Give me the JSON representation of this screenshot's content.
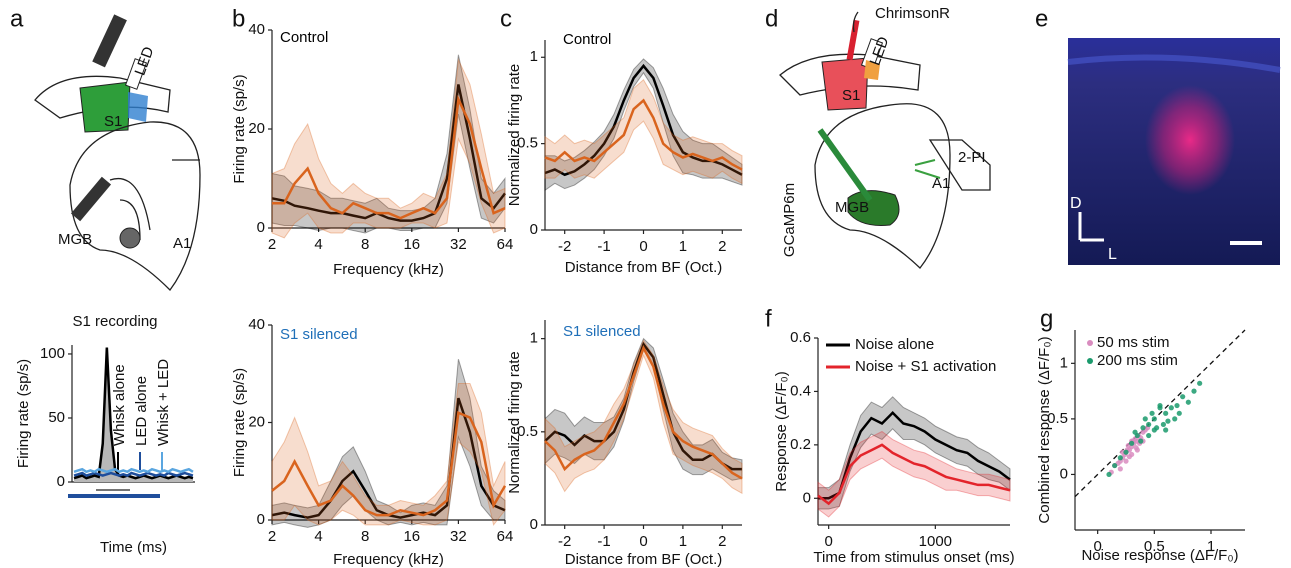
{
  "panel_labels": [
    "a",
    "b",
    "c",
    "d",
    "e",
    "f",
    "g"
  ],
  "diagrams": {
    "a": {
      "led": "LED",
      "s1": "S1",
      "a1": "A1",
      "mgb": "MGB"
    },
    "d": {
      "opsin": "ChrimsonR",
      "led": "LED",
      "s1": "S1",
      "imaging": "2-PI",
      "indicator": "GCaMP6m",
      "mgb": "MGB",
      "a1": "A1"
    },
    "e": {
      "dorsal": "D",
      "lateral": "L"
    }
  },
  "chart_data": [
    {
      "type": "line",
      "title": "S1 recording",
      "y_label": "Firing rate (sp/s)",
      "x_label": "Time (ms)",
      "ylim": [
        0,
        107
      ],
      "yticks": [
        0,
        50,
        100
      ],
      "series": [
        {
          "name": "Whisk alone",
          "color": "#000000",
          "area_color": "#b8b8b8",
          "values": [
            3,
            4,
            5,
            3,
            4,
            5,
            4,
            30,
            105,
            40,
            10,
            5,
            4,
            5,
            4,
            3,
            4,
            5,
            4,
            3,
            4,
            5,
            4,
            3,
            4,
            5,
            4,
            3,
            4,
            3
          ]
        },
        {
          "name": "LED alone",
          "color": "#1f4e9c",
          "values": [
            5,
            6,
            7,
            5,
            6,
            7,
            6,
            5,
            6,
            7,
            6,
            5,
            6,
            5,
            7,
            6,
            5,
            6,
            7,
            6,
            5,
            6,
            5,
            7,
            6,
            5,
            6,
            7,
            6,
            5
          ]
        },
        {
          "name": "Whisk + LED",
          "color": "#5aa6e0",
          "values": [
            8,
            9,
            10,
            8,
            9,
            8,
            10,
            9,
            8,
            9,
            10,
            8,
            9,
            8,
            10,
            9,
            8,
            9,
            8,
            10,
            9,
            8,
            9,
            8,
            10,
            9,
            8,
            9,
            10,
            8
          ]
        }
      ]
    },
    {
      "type": "line",
      "title": "Control",
      "title_color": "#000000",
      "y_label": "Firing rate (sp/s)",
      "x_label": "Frequency (kHz)",
      "xscale": "log",
      "xlim": [
        2,
        64
      ],
      "xticks": [
        2,
        4,
        8,
        16,
        32,
        64
      ],
      "ylim": [
        0,
        40
      ],
      "yticks": [
        0,
        20,
        40
      ],
      "x": [
        2,
        2.4,
        2.8,
        3.4,
        4,
        4.8,
        5.7,
        6.7,
        8,
        9.5,
        11.3,
        13.5,
        16,
        19,
        22.6,
        27,
        32,
        38,
        45,
        54,
        64
      ],
      "series": [
        {
          "color": "#000000",
          "values": [
            6,
            5.5,
            4.5,
            4,
            3.5,
            3,
            3,
            2.5,
            2,
            3,
            2,
            1.5,
            1.5,
            2,
            3,
            10,
            29,
            18,
            6,
            4,
            7
          ],
          "errors": [
            5,
            5,
            4,
            4,
            4,
            3,
            3,
            3,
            3,
            3,
            2,
            2,
            2,
            2,
            3,
            5,
            6,
            6,
            4,
            3,
            3
          ]
        },
        {
          "color": "#d9641e",
          "values": [
            5,
            5,
            9,
            12,
            7,
            4,
            3,
            5,
            4,
            3,
            3,
            2,
            3,
            4,
            3,
            6,
            26,
            21,
            12,
            3,
            4
          ],
          "errors": [
            6,
            7,
            8,
            9,
            7,
            5,
            4,
            4,
            3,
            3,
            3,
            2,
            2,
            3,
            3,
            5,
            8,
            8,
            7,
            4,
            4
          ]
        }
      ]
    },
    {
      "type": "line",
      "title": "S1 silenced",
      "title_color": "#1f6fb8",
      "y_label": "Firing rate (sp/s)",
      "x_label": "Frequency (kHz)",
      "xscale": "log",
      "xlim": [
        2,
        64
      ],
      "xticks": [
        2,
        4,
        8,
        16,
        32,
        64
      ],
      "ylim": [
        0,
        40
      ],
      "yticks": [
        0,
        20,
        40
      ],
      "x": [
        2,
        2.4,
        2.8,
        3.4,
        4,
        4.8,
        5.7,
        6.7,
        8,
        9.5,
        11.3,
        13.5,
        16,
        19,
        22.6,
        27,
        32,
        38,
        45,
        54,
        64
      ],
      "series": [
        {
          "color": "#000000",
          "values": [
            1,
            1.5,
            1,
            0.5,
            1,
            4,
            8,
            10,
            6,
            2,
            1,
            0.5,
            1,
            1.5,
            1,
            3,
            25,
            18,
            7,
            3,
            2
          ],
          "errors": [
            2,
            2,
            2,
            2,
            2,
            4,
            5,
            5,
            4,
            2,
            2,
            1,
            2,
            2,
            2,
            4,
            8,
            7,
            4,
            3,
            2
          ]
        },
        {
          "color": "#d9641e",
          "values": [
            6,
            8,
            12,
            7,
            3,
            4,
            7,
            5,
            2,
            1,
            1,
            2,
            1.5,
            1,
            2,
            4,
            22,
            21,
            16,
            3,
            7
          ],
          "errors": [
            6,
            8,
            9,
            7,
            4,
            4,
            5,
            4,
            3,
            2,
            2,
            2,
            2,
            2,
            3,
            4,
            6,
            7,
            6,
            4,
            5
          ]
        }
      ]
    },
    {
      "type": "line",
      "title": "Control",
      "title_color": "#000000",
      "y_label": "Normalized firing rate",
      "x_label": "Distance from BF (Oct.)",
      "xlim": [
        -2.5,
        2.5
      ],
      "xticks": [
        -2,
        -1,
        0,
        1,
        2
      ],
      "ylim": [
        0,
        1.1
      ],
      "yticks": [
        0,
        0.5,
        1
      ],
      "x": [
        -2.5,
        -2.25,
        -2,
        -1.75,
        -1.5,
        -1.25,
        -1,
        -0.75,
        -0.5,
        -0.25,
        0,
        0.25,
        0.5,
        0.75,
        1,
        1.25,
        1.5,
        1.75,
        2,
        2.25,
        2.5
      ],
      "series": [
        {
          "color": "#000000",
          "values": [
            0.33,
            0.35,
            0.32,
            0.34,
            0.38,
            0.43,
            0.5,
            0.6,
            0.75,
            0.88,
            0.95,
            0.88,
            0.72,
            0.55,
            0.45,
            0.42,
            0.4,
            0.4,
            0.38,
            0.35,
            0.32
          ],
          "errors": [
            0.1,
            0.08,
            0.08,
            0.08,
            0.08,
            0.08,
            0.07,
            0.07,
            0.06,
            0.05,
            0.04,
            0.06,
            0.1,
            0.12,
            0.12,
            0.1,
            0.1,
            0.1,
            0.08,
            0.07,
            0.06
          ]
        },
        {
          "color": "#d9641e",
          "values": [
            0.42,
            0.4,
            0.45,
            0.4,
            0.42,
            0.4,
            0.45,
            0.5,
            0.55,
            0.7,
            0.75,
            0.65,
            0.5,
            0.45,
            0.42,
            0.44,
            0.42,
            0.4,
            0.42,
            0.38,
            0.35
          ],
          "errors": [
            0.12,
            0.1,
            0.1,
            0.1,
            0.1,
            0.1,
            0.1,
            0.1,
            0.1,
            0.12,
            0.12,
            0.12,
            0.12,
            0.1,
            0.1,
            0.1,
            0.1,
            0.1,
            0.08,
            0.08,
            0.08
          ]
        }
      ]
    },
    {
      "type": "line",
      "title": "S1 silenced",
      "title_color": "#1f6fb8",
      "y_label": "Normalized firing rate",
      "x_label": "Distance from BF (Oct.)",
      "xlim": [
        -2.5,
        2.5
      ],
      "xticks": [
        -2,
        -1,
        0,
        1,
        2
      ],
      "ylim": [
        0,
        1.1
      ],
      "yticks": [
        0,
        0.5,
        1
      ],
      "x": [
        -2.5,
        -2.25,
        -2,
        -1.75,
        -1.5,
        -1.25,
        -1,
        -0.75,
        -0.5,
        -0.25,
        0,
        0.25,
        0.5,
        0.75,
        1,
        1.25,
        1.5,
        1.75,
        2,
        2.25,
        2.5
      ],
      "series": [
        {
          "color": "#000000",
          "values": [
            0.45,
            0.5,
            0.48,
            0.43,
            0.48,
            0.45,
            0.45,
            0.5,
            0.62,
            0.82,
            0.97,
            0.9,
            0.7,
            0.5,
            0.4,
            0.35,
            0.35,
            0.38,
            0.33,
            0.3,
            0.3
          ],
          "errors": [
            0.12,
            0.12,
            0.12,
            0.1,
            0.1,
            0.1,
            0.1,
            0.08,
            0.06,
            0.05,
            0.03,
            0.05,
            0.08,
            0.1,
            0.1,
            0.08,
            0.08,
            0.08,
            0.06,
            0.06,
            0.05
          ]
        },
        {
          "color": "#d9641e",
          "values": [
            0.45,
            0.4,
            0.3,
            0.35,
            0.38,
            0.4,
            0.45,
            0.55,
            0.65,
            0.8,
            0.95,
            0.85,
            0.65,
            0.5,
            0.45,
            0.42,
            0.4,
            0.38,
            0.33,
            0.28,
            0.25
          ],
          "errors": [
            0.12,
            0.12,
            0.12,
            0.1,
            0.1,
            0.1,
            0.1,
            0.1,
            0.08,
            0.06,
            0.04,
            0.06,
            0.1,
            0.12,
            0.1,
            0.1,
            0.1,
            0.1,
            0.08,
            0.08,
            0.08
          ]
        }
      ]
    },
    {
      "type": "line",
      "y_label": "Response (ΔF/F₀)",
      "x_label": "Time from stimulus onset (ms)",
      "xlim": [
        -100,
        1700
      ],
      "xticks": [
        0,
        1000
      ],
      "ylim": [
        -0.1,
        0.6
      ],
      "yticks": [
        0,
        0.2,
        0.4,
        0.6
      ],
      "x": [
        -100,
        0,
        100,
        200,
        300,
        400,
        500,
        600,
        700,
        800,
        900,
        1000,
        1100,
        1200,
        1300,
        1400,
        1500,
        1600,
        1700
      ],
      "series": [
        {
          "name": "Noise alone",
          "color": "#000000",
          "values": [
            0,
            0,
            0.02,
            0.15,
            0.25,
            0.3,
            0.28,
            0.32,
            0.28,
            0.27,
            0.25,
            0.22,
            0.2,
            0.18,
            0.17,
            0.14,
            0.12,
            0.1,
            0.07
          ],
          "errors": [
            0.04,
            0.04,
            0.05,
            0.05,
            0.06,
            0.06,
            0.06,
            0.06,
            0.06,
            0.05,
            0.05,
            0.05,
            0.05,
            0.05,
            0.05,
            0.05,
            0.05,
            0.04,
            0.04
          ]
        },
        {
          "name": "Noise + S1 activation",
          "color": "#e3242b",
          "values": [
            0.01,
            -0.02,
            0.02,
            0.12,
            0.16,
            0.18,
            0.2,
            0.17,
            0.15,
            0.13,
            0.12,
            0.1,
            0.08,
            0.07,
            0.06,
            0.05,
            0.05,
            0.04,
            0.03
          ],
          "errors": [
            0.05,
            0.05,
            0.05,
            0.05,
            0.05,
            0.05,
            0.05,
            0.05,
            0.05,
            0.05,
            0.05,
            0.05,
            0.05,
            0.04,
            0.04,
            0.04,
            0.04,
            0.04,
            0.04
          ]
        }
      ]
    },
    {
      "type": "scatter",
      "y_label": "Combined response (ΔF/F₀)",
      "x_label": "Noise response (ΔF/F₀)",
      "xlim": [
        -0.2,
        1.3
      ],
      "xticks": [
        0,
        0.5,
        1
      ],
      "ylim": [
        -0.5,
        1.3
      ],
      "yticks": [
        0,
        0.5,
        1
      ],
      "series": [
        {
          "name": "50 ms stim",
          "color": "#d98cbf",
          "x": [
            0.12,
            0.15,
            0.18,
            0.2,
            0.22,
            0.24,
            0.25,
            0.26,
            0.28,
            0.3,
            0.3,
            0.32,
            0.33,
            0.35,
            0.36,
            0.38,
            0.4,
            0.42,
            0.44,
            0.2,
            0.25,
            0.28,
            0.3,
            0.34,
            0.37,
            0.22,
            0.27,
            0.31,
            0.35,
            0.4
          ],
          "y": [
            0.02,
            0.08,
            0.1,
            0.12,
            0.15,
            0.18,
            0.2,
            0.22,
            0.22,
            0.25,
            0.3,
            0.28,
            0.32,
            0.3,
            0.35,
            0.33,
            0.38,
            0.4,
            0.42,
            0.05,
            0.12,
            0.16,
            0.18,
            0.24,
            0.28,
            0.2,
            0.26,
            0.3,
            0.22,
            0.3
          ]
        },
        {
          "name": "200 ms stim",
          "color": "#1a9a6c",
          "x": [
            0.1,
            0.15,
            0.2,
            0.25,
            0.3,
            0.35,
            0.4,
            0.42,
            0.45,
            0.48,
            0.5,
            0.52,
            0.55,
            0.58,
            0.6,
            0.62,
            0.65,
            0.7,
            0.72,
            0.75,
            0.8,
            0.85,
            0.9,
            0.45,
            0.5,
            0.55,
            0.38,
            0.33,
            0.6,
            0.68
          ],
          "y": [
            0.0,
            0.08,
            0.15,
            0.2,
            0.28,
            0.35,
            0.42,
            0.5,
            0.45,
            0.55,
            0.5,
            0.42,
            0.6,
            0.45,
            0.55,
            0.48,
            0.6,
            0.62,
            0.55,
            0.7,
            0.65,
            0.75,
            0.82,
            0.35,
            0.4,
            0.62,
            0.3,
            0.38,
            0.4,
            0.5
          ]
        }
      ]
    }
  ]
}
